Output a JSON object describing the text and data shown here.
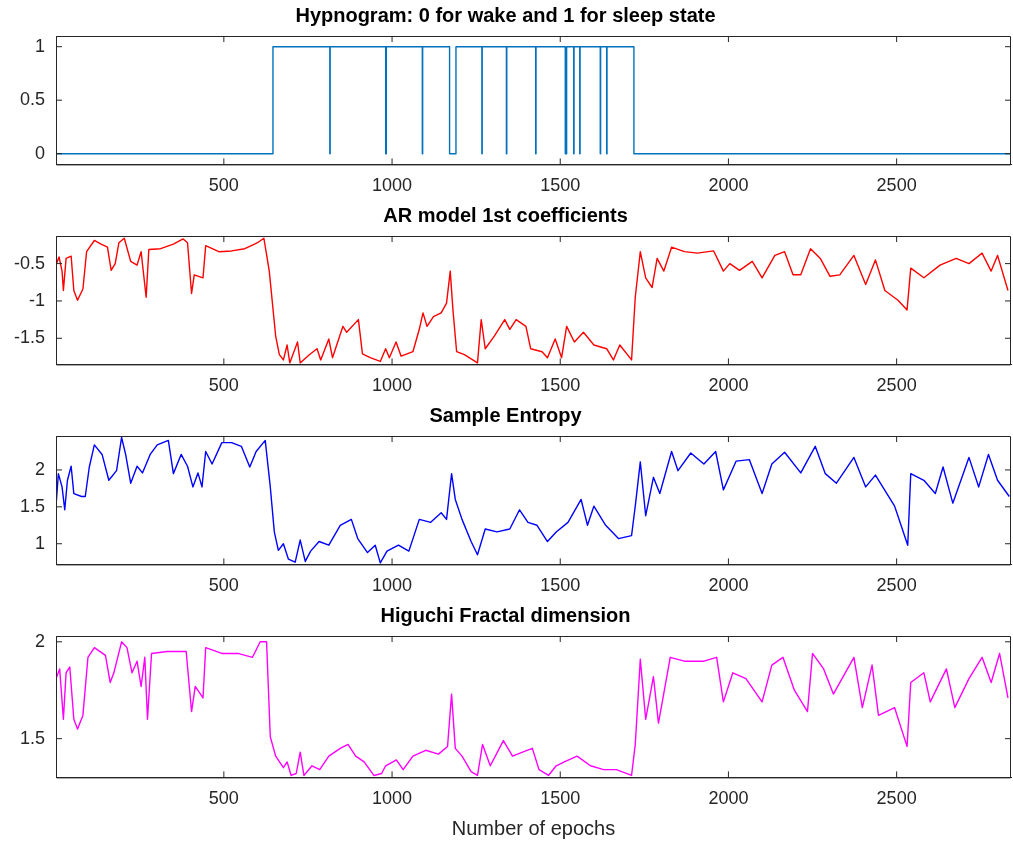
{
  "chart_data": [
    {
      "type": "step",
      "title": "Hypnogram: 0 for wake and 1 for sleep state",
      "x": [
        1,
        646,
        815,
        816,
        981,
        983,
        1090,
        1091,
        1171,
        1190,
        1267,
        1268,
        1340,
        1341,
        1427,
        1428,
        1515,
        1519,
        1540,
        1541,
        1558,
        1559,
        1619,
        1620,
        1638,
        1639,
        1719,
        2840
      ],
      "series": [
        {
          "color": "#0072bd",
          "values": [
            0,
            1,
            0,
            1,
            0,
            1,
            0,
            1,
            0,
            1,
            0,
            1,
            0,
            1,
            0,
            1,
            0,
            1,
            0,
            1,
            0,
            1,
            0,
            1,
            0,
            1,
            0,
            0
          ]
        }
      ],
      "xlim": [
        1,
        2840
      ],
      "xticks": [
        500,
        1000,
        1500,
        2000,
        2500
      ],
      "ylim": [
        -0.1,
        1.1
      ],
      "yticks": [
        0,
        0.5,
        1
      ]
    },
    {
      "type": "line",
      "title": "AR model 1st coefficients",
      "x": [
        1,
        10,
        19,
        23,
        31,
        46,
        54,
        65,
        81,
        92,
        115,
        135,
        154,
        165,
        177,
        188,
        204,
        223,
        242,
        254,
        269,
        277,
        312,
        350,
        379,
        392,
        404,
        412,
        438,
        446,
        485,
        523,
        562,
        600,
        619,
        635,
        654,
        665,
        677,
        688,
        696,
        719,
        727,
        754,
        777,
        788,
        812,
        823,
        854,
        865,
        900,
        912,
        935,
        965,
        981,
        992,
        1012,
        1027,
        1062,
        1081,
        1092,
        1104,
        1123,
        1146,
        1162,
        1173,
        1181,
        1192,
        1215,
        1254,
        1265,
        1277,
        1304,
        1335,
        1350,
        1369,
        1398,
        1412,
        1446,
        1462,
        1485,
        1504,
        1519,
        1542,
        1569,
        1600,
        1638,
        1658,
        1677,
        1712,
        1723,
        1738,
        1754,
        1773,
        1788,
        1808,
        1831,
        1869,
        1908,
        1956,
        1985,
        2004,
        2033,
        2071,
        2100,
        2138,
        2167,
        2192,
        2215,
        2244,
        2273,
        2302,
        2331,
        2373,
        2408,
        2437,
        2465,
        2504,
        2531,
        2542,
        2581,
        2629,
        2677,
        2715,
        2754,
        2781,
        2800,
        2831
      ],
      "series": [
        {
          "color": "#ff0000",
          "values": [
            -0.52,
            -0.41,
            -0.6,
            -0.86,
            -0.43,
            -0.4,
            -0.86,
            -0.99,
            -0.84,
            -0.34,
            -0.19,
            -0.24,
            -0.28,
            -0.59,
            -0.5,
            -0.22,
            -0.16,
            -0.47,
            -0.52,
            -0.34,
            -0.95,
            -0.31,
            -0.3,
            -0.24,
            -0.17,
            -0.22,
            -0.9,
            -0.65,
            -0.69,
            -0.26,
            -0.34,
            -0.33,
            -0.3,
            -0.22,
            -0.16,
            -0.6,
            -1.47,
            -1.72,
            -1.79,
            -1.59,
            -1.83,
            -1.55,
            -1.83,
            -1.72,
            -1.64,
            -1.79,
            -1.51,
            -1.76,
            -1.34,
            -1.42,
            -1.25,
            -1.71,
            -1.76,
            -1.81,
            -1.64,
            -1.76,
            -1.55,
            -1.74,
            -1.68,
            -1.38,
            -1.16,
            -1.34,
            -1.21,
            -1.16,
            -1.03,
            -0.6,
            -1.12,
            -1.68,
            -1.72,
            -1.83,
            -1.25,
            -1.64,
            -1.47,
            -1.25,
            -1.38,
            -1.25,
            -1.34,
            -1.64,
            -1.68,
            -1.76,
            -1.51,
            -1.76,
            -1.34,
            -1.55,
            -1.42,
            -1.59,
            -1.64,
            -1.79,
            -1.59,
            -1.79,
            -0.95,
            -0.34,
            -0.69,
            -0.82,
            -0.43,
            -0.6,
            -0.28,
            -0.34,
            -0.36,
            -0.33,
            -0.6,
            -0.5,
            -0.59,
            -0.47,
            -0.69,
            -0.39,
            -0.34,
            -0.65,
            -0.65,
            -0.3,
            -0.43,
            -0.67,
            -0.65,
            -0.39,
            -0.78,
            -0.45,
            -0.86,
            -0.99,
            -1.12,
            -0.56,
            -0.69,
            -0.52,
            -0.43,
            -0.5,
            -0.36,
            -0.6,
            -0.39,
            -0.86
          ]
        }
      ],
      "xlim": [
        1,
        2840
      ],
      "xticks": [
        500,
        1000,
        1500,
        2000,
        2500
      ],
      "ylim": [
        -1.85,
        -0.13
      ],
      "yticks": [
        -1.5,
        -1,
        -0.5
      ]
    },
    {
      "type": "line",
      "title": "Sample Entropy",
      "x": [
        1,
        8,
        19,
        27,
        35,
        46,
        54,
        77,
        88,
        100,
        115,
        138,
        158,
        181,
        196,
        208,
        223,
        242,
        258,
        281,
        302,
        335,
        350,
        373,
        392,
        408,
        423,
        435,
        446,
        465,
        494,
        523,
        552,
        577,
        596,
        623,
        638,
        650,
        662,
        677,
        692,
        712,
        727,
        742,
        758,
        783,
        812,
        846,
        879,
        898,
        927,
        950,
        965,
        985,
        1019,
        1050,
        1081,
        1115,
        1146,
        1162,
        1177,
        1188,
        1208,
        1235,
        1254,
        1277,
        1312,
        1350,
        1379,
        1404,
        1431,
        1462,
        1488,
        1523,
        1562,
        1581,
        1600,
        1635,
        1673,
        1712,
        1723,
        1738,
        1754,
        1777,
        1796,
        1831,
        1850,
        1888,
        1927,
        1962,
        1985,
        2023,
        2062,
        2100,
        2129,
        2167,
        2215,
        2258,
        2288,
        2321,
        2373,
        2408,
        2437,
        2494,
        2533,
        2542,
        2581,
        2615,
        2638,
        2667,
        2715,
        2744,
        2773,
        2800,
        2835
      ],
      "series": [
        {
          "color": "#0000ff",
          "values": [
            1.51,
            1.95,
            1.77,
            1.46,
            1.86,
            2.05,
            1.68,
            1.64,
            1.64,
            2.04,
            2.34,
            2.21,
            1.86,
            1.99,
            2.44,
            2.21,
            1.82,
            2.05,
            1.96,
            2.21,
            2.34,
            2.4,
            1.95,
            2.21,
            2.05,
            1.77,
            1.96,
            1.77,
            2.25,
            2.08,
            2.37,
            2.37,
            2.32,
            2.04,
            2.25,
            2.4,
            1.77,
            1.16,
            0.91,
            1.0,
            0.79,
            0.75,
            1.05,
            0.76,
            0.9,
            1.03,
            0.98,
            1.25,
            1.33,
            1.07,
            0.88,
            0.98,
            0.74,
            0.9,
            0.98,
            0.9,
            1.33,
            1.29,
            1.42,
            1.33,
            1.95,
            1.6,
            1.33,
            1.03,
            0.85,
            1.2,
            1.16,
            1.2,
            1.46,
            1.29,
            1.25,
            1.03,
            1.16,
            1.29,
            1.6,
            1.25,
            1.51,
            1.25,
            1.07,
            1.11,
            1.51,
            2.11,
            1.38,
            1.9,
            1.68,
            2.25,
            1.99,
            2.23,
            2.08,
            2.25,
            1.73,
            2.12,
            2.14,
            1.68,
            2.08,
            2.24,
            1.96,
            2.32,
            1.95,
            1.82,
            2.17,
            1.77,
            1.93,
            1.51,
            0.98,
            1.95,
            1.86,
            1.68,
            2.04,
            1.55,
            2.17,
            1.77,
            2.21,
            1.86,
            1.64
          ]
        }
      ],
      "xlim": [
        1,
        2840
      ],
      "xticks": [
        500,
        1000,
        1500,
        2000,
        2500
      ],
      "ylim": [
        0.72,
        2.46
      ],
      "yticks": [
        1,
        1.5,
        2
      ]
    },
    {
      "type": "line",
      "title": "Higuchi Fractal dimension",
      "xlabel": "Number of epochs",
      "x": [
        1,
        12,
        23,
        31,
        42,
        54,
        65,
        81,
        96,
        115,
        148,
        162,
        173,
        196,
        212,
        227,
        242,
        254,
        265,
        273,
        285,
        331,
        388,
        404,
        415,
        438,
        446,
        494,
        542,
        585,
        608,
        627,
        638,
        654,
        677,
        688,
        700,
        715,
        727,
        738,
        762,
        785,
        812,
        846,
        869,
        892,
        917,
        946,
        969,
        981,
        1013,
        1033,
        1062,
        1100,
        1138,
        1165,
        1177,
        1188,
        1208,
        1235,
        1254,
        1269,
        1292,
        1331,
        1358,
        1388,
        1417,
        1437,
        1465,
        1488,
        1512,
        1550,
        1590,
        1629,
        1667,
        1712,
        1723,
        1738,
        1754,
        1777,
        1792,
        1827,
        1869,
        1927,
        1965,
        1985,
        2013,
        2052,
        2100,
        2129,
        2162,
        2196,
        2235,
        2250,
        2283,
        2312,
        2373,
        2398,
        2427,
        2446,
        2494,
        2531,
        2542,
        2581,
        2600,
        2648,
        2673,
        2715,
        2754,
        2781,
        2806,
        2831
      ],
      "series": [
        {
          "color": "#ff00ff",
          "values": [
            1.81,
            1.86,
            1.6,
            1.84,
            1.87,
            1.6,
            1.55,
            1.62,
            1.92,
            1.97,
            1.93,
            1.79,
            1.84,
            2.0,
            1.97,
            1.84,
            1.9,
            1.77,
            1.92,
            1.6,
            1.94,
            1.95,
            1.95,
            1.64,
            1.77,
            1.71,
            1.97,
            1.94,
            1.94,
            1.92,
            2.0,
            2.0,
            1.51,
            1.41,
            1.35,
            1.38,
            1.31,
            1.32,
            1.43,
            1.31,
            1.36,
            1.34,
            1.41,
            1.45,
            1.47,
            1.41,
            1.38,
            1.31,
            1.32,
            1.36,
            1.39,
            1.34,
            1.41,
            1.44,
            1.42,
            1.46,
            1.73,
            1.45,
            1.41,
            1.33,
            1.31,
            1.47,
            1.36,
            1.49,
            1.41,
            1.43,
            1.45,
            1.34,
            1.31,
            1.36,
            1.38,
            1.41,
            1.36,
            1.34,
            1.34,
            1.31,
            1.47,
            1.91,
            1.6,
            1.82,
            1.58,
            1.92,
            1.9,
            1.9,
            1.92,
            1.69,
            1.84,
            1.81,
            1.69,
            1.88,
            1.92,
            1.75,
            1.64,
            1.94,
            1.86,
            1.73,
            1.92,
            1.66,
            1.88,
            1.62,
            1.66,
            1.46,
            1.79,
            1.84,
            1.69,
            1.86,
            1.66,
            1.81,
            1.92,
            1.79,
            1.94,
            1.71
          ]
        }
      ],
      "xlim": [
        1,
        2840
      ],
      "xticks": [
        500,
        1000,
        1500,
        2000,
        2500
      ],
      "ylim": [
        1.3,
        2.03
      ],
      "yticks": [
        1.5,
        2
      ]
    }
  ]
}
